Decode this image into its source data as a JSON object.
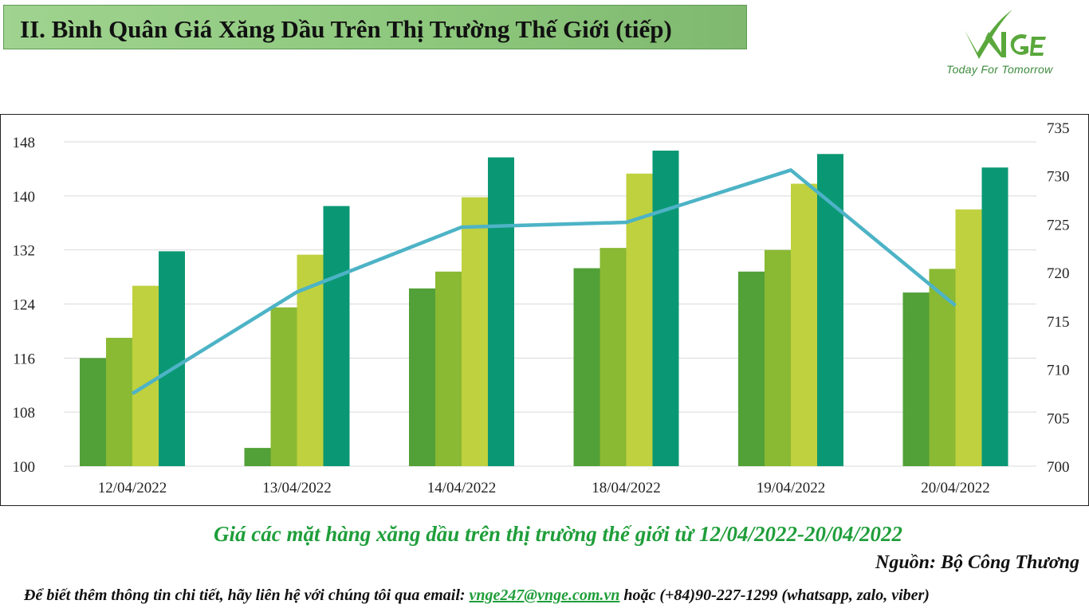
{
  "header": {
    "title": "II. Bình Quân Giá Xăng Dầu Trên Thị Trường Thế Giới (tiếp)"
  },
  "logo": {
    "brand": "VNGE",
    "tagline": "Today For Tomorrow",
    "color": "#5aa83c"
  },
  "caption": "Giá các mặt hàng xăng dầu trên thị trường thế giới từ 12/04/2022-20/04/2022",
  "source": "Nguồn: Bộ Công Thương",
  "contact": {
    "prefix": "Để biết thêm thông tin chi tiết, hãy liên hệ với chúng tôi qua email:",
    "email": "vnge247@vnge.com.vn",
    "suffix": "hoặc (+84)90-227-1299 (whatsapp, zalo, viber)"
  },
  "chart_data": {
    "type": "bar",
    "categories": [
      "12/04/2022",
      "13/04/2022",
      "14/04/2022",
      "18/04/2022",
      "19/04/2022",
      "20/04/2022"
    ],
    "series": [
      {
        "type": "bar",
        "axis": "left",
        "color": "#52a038",
        "values": [
          116.0,
          102.7,
          126.3,
          129.3,
          128.8,
          125.7
        ]
      },
      {
        "type": "bar",
        "axis": "left",
        "color": "#8ab933",
        "values": [
          119.0,
          123.5,
          128.8,
          132.3,
          132.0,
          129.2
        ]
      },
      {
        "type": "bar",
        "axis": "left",
        "color": "#bfd13e",
        "values": [
          126.7,
          131.3,
          139.8,
          143.3,
          141.8,
          138.0
        ]
      },
      {
        "type": "bar",
        "axis": "left",
        "color": "#0a9874",
        "values": [
          131.8,
          138.5,
          145.7,
          146.7,
          146.2,
          144.2
        ]
      },
      {
        "type": "line",
        "axis": "right",
        "color": "#4db3c6",
        "values": [
          707.5,
          718.0,
          724.7,
          725.2,
          730.6,
          716.6
        ]
      }
    ],
    "ylim_left": [
      100,
      148
    ],
    "yticks_left": [
      100,
      108,
      116,
      124,
      132,
      140,
      148
    ],
    "ylim_right": [
      700,
      735
    ],
    "yticks_right": [
      700,
      705,
      710,
      715,
      720,
      725,
      730,
      735
    ],
    "grid": true,
    "legend": "none"
  }
}
